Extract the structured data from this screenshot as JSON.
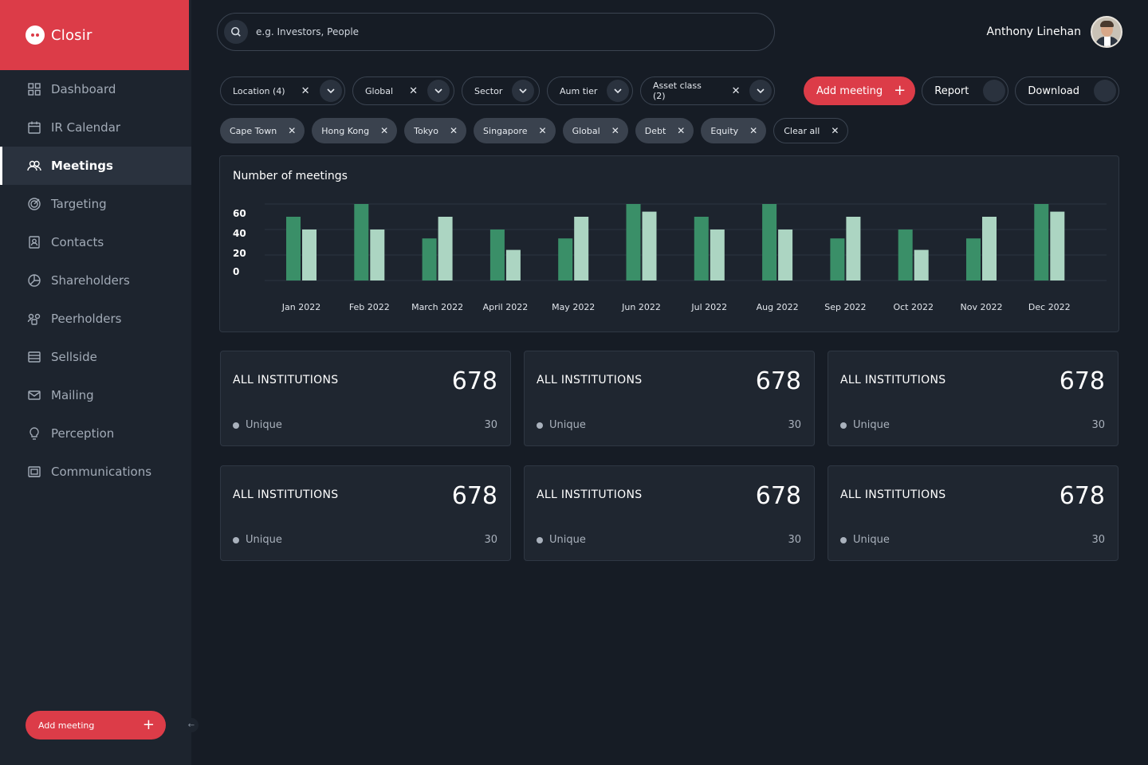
{
  "brand": {
    "name": "Closir"
  },
  "sidebar": {
    "items": [
      {
        "label": "Dashboard",
        "icon": "dashboard-icon",
        "active": false
      },
      {
        "label": "IR Calendar",
        "icon": "calendar-icon",
        "active": false
      },
      {
        "label": "Meetings",
        "icon": "meetings-icon",
        "active": true
      },
      {
        "label": "Targeting",
        "icon": "target-icon",
        "active": false
      },
      {
        "label": "Contacts",
        "icon": "contacts-icon",
        "active": false
      },
      {
        "label": "Shareholders",
        "icon": "pie-icon",
        "active": false
      },
      {
        "label": "Peerholders",
        "icon": "peers-icon",
        "active": false
      },
      {
        "label": "Sellside",
        "icon": "list-icon",
        "active": false
      },
      {
        "label": "Mailing",
        "icon": "mail-icon",
        "active": false
      },
      {
        "label": "Perception",
        "icon": "bulb-icon",
        "active": false
      },
      {
        "label": "Communications",
        "icon": "communications-icon",
        "active": false
      }
    ],
    "add_meeting_label": "Add meeting"
  },
  "search": {
    "placeholder": "e.g. Investors, People"
  },
  "user": {
    "name": "Anthony Linehan"
  },
  "filters": [
    {
      "label": "Location (4)",
      "has_clear": true
    },
    {
      "label": "Global",
      "has_clear": true
    },
    {
      "label": "Sector",
      "has_clear": false
    },
    {
      "label": "Aum tier",
      "has_clear": false
    },
    {
      "label": "Asset class (2)",
      "has_clear": true
    }
  ],
  "actions": {
    "add_meeting": "Add meeting",
    "report": "Report",
    "download": "Download"
  },
  "chips": [
    "Cape Town",
    "Hong Kong",
    "Tokyo",
    "Singapore",
    "Global",
    "Debt",
    "Equity"
  ],
  "clear_all": "Clear all",
  "colors": {
    "brand": "#dc3c48",
    "bar_dark": "#3a8f68",
    "bar_light": "#acd5c2",
    "background": "#161c25",
    "panel": "#1d242e"
  },
  "chart_data": {
    "type": "bar",
    "title": "Number of meetings",
    "categories": [
      "Jan 2022",
      "Feb 2022",
      "March 2022",
      "April 2022",
      "May 2022",
      "Jun 2022",
      "Jul 2022",
      "Aug 2022",
      "Sep 2022",
      "Oct 2022",
      "Nov 2022",
      "Dec 2022"
    ],
    "series": [
      {
        "values": [
          50,
          60,
          33,
          40,
          33,
          60,
          50,
          60,
          33,
          40,
          33,
          60
        ]
      },
      {
        "values": [
          40,
          40,
          50,
          24,
          50,
          54,
          40,
          40,
          50,
          24,
          50,
          54
        ]
      }
    ],
    "yticks": [
      0,
      20,
      40,
      60
    ],
    "ylim": [
      0,
      60
    ],
    "grid": true
  },
  "stats": [
    {
      "label": "ALL INSTITUTIONS",
      "value": "678",
      "sub_label": "Unique",
      "sub_value": "30"
    },
    {
      "label": "ALL INSTITUTIONS",
      "value": "678",
      "sub_label": "Unique",
      "sub_value": "30"
    },
    {
      "label": "ALL INSTITUTIONS",
      "value": "678",
      "sub_label": "Unique",
      "sub_value": "30"
    },
    {
      "label": "ALL INSTITUTIONS",
      "value": "678",
      "sub_label": "Unique",
      "sub_value": "30"
    },
    {
      "label": "ALL INSTITUTIONS",
      "value": "678",
      "sub_label": "Unique",
      "sub_value": "30"
    },
    {
      "label": "ALL INSTITUTIONS",
      "value": "678",
      "sub_label": "Unique",
      "sub_value": "30"
    }
  ]
}
